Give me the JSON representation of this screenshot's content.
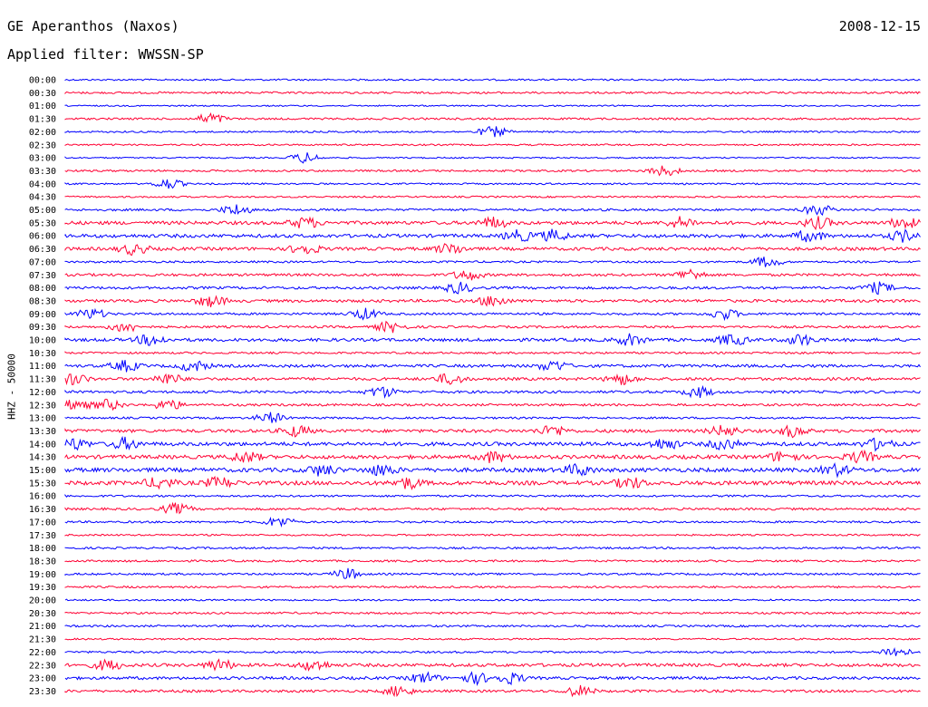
{
  "header": {
    "title": "GE Aperanthos (Naxos)",
    "date": "2008-12-15",
    "filter": "Applied filter: WWSSN-SP"
  },
  "axis": {
    "ylabel": "HHZ - 50000"
  },
  "colors": {
    "blue": "#0000ff",
    "red": "#ff0033"
  },
  "chart_data": {
    "type": "line",
    "series_kind": "seismogram helicorder",
    "row_interval_minutes": 30,
    "row_colors": [
      "blue",
      "red"
    ],
    "rows": [
      {
        "time": "00:00",
        "activity": 0.2
      },
      {
        "time": "00:30",
        "activity": 0.3
      },
      {
        "time": "01:00",
        "activity": 0.1
      },
      {
        "time": "01:30",
        "activity": 0.3,
        "events": [
          0.17
        ]
      },
      {
        "time": "02:00",
        "activity": 0.2,
        "events": [
          0.5
        ]
      },
      {
        "time": "02:30",
        "activity": 0.2
      },
      {
        "time": "03:00",
        "activity": 0.1,
        "events": [
          0.28
        ]
      },
      {
        "time": "03:30",
        "activity": 0.3,
        "events": [
          0.7
        ]
      },
      {
        "time": "04:00",
        "activity": 0.2,
        "events": [
          0.12
        ]
      },
      {
        "time": "04:30",
        "activity": 0.2
      },
      {
        "time": "05:00",
        "activity": 0.4,
        "events": [
          0.2,
          0.88
        ]
      },
      {
        "time": "05:30",
        "activity": 0.8,
        "events": [
          0.28,
          0.5,
          0.72,
          0.88,
          0.98
        ]
      },
      {
        "time": "06:00",
        "activity": 0.8,
        "events": [
          0.53,
          0.57,
          0.87,
          0.98
        ]
      },
      {
        "time": "06:30",
        "activity": 0.7,
        "events": [
          0.08,
          0.28,
          0.45
        ]
      },
      {
        "time": "07:00",
        "activity": 0.3,
        "events": [
          0.82
        ]
      },
      {
        "time": "07:30",
        "activity": 0.5,
        "events": [
          0.47,
          0.73
        ]
      },
      {
        "time": "08:00",
        "activity": 0.5,
        "events": [
          0.46,
          0.95
        ]
      },
      {
        "time": "08:30",
        "activity": 0.6,
        "events": [
          0.17,
          0.5
        ]
      },
      {
        "time": "09:00",
        "activity": 0.4,
        "events": [
          0.03,
          0.35,
          0.77
        ]
      },
      {
        "time": "09:30",
        "activity": 0.4,
        "events": [
          0.07,
          0.38
        ]
      },
      {
        "time": "10:00",
        "activity": 0.7,
        "events": [
          0.1,
          0.66,
          0.78,
          0.86
        ]
      },
      {
        "time": "10:30",
        "activity": 0.3
      },
      {
        "time": "11:00",
        "activity": 0.6,
        "events": [
          0.07,
          0.15,
          0.57
        ]
      },
      {
        "time": "11:30",
        "activity": 0.6,
        "events": [
          0.01,
          0.12,
          0.45,
          0.65
        ]
      },
      {
        "time": "12:00",
        "activity": 0.5,
        "events": [
          0.37,
          0.74
        ]
      },
      {
        "time": "12:30",
        "activity": 0.4,
        "events": [
          0.01,
          0.05,
          0.12
        ]
      },
      {
        "time": "13:00",
        "activity": 0.3,
        "events": [
          0.24
        ]
      },
      {
        "time": "13:30",
        "activity": 0.7,
        "events": [
          0.27,
          0.57,
          0.77,
          0.85
        ]
      },
      {
        "time": "14:00",
        "activity": 0.9,
        "events": [
          0.01,
          0.07,
          0.7,
          0.77,
          0.95
        ]
      },
      {
        "time": "14:30",
        "activity": 0.9,
        "events": [
          0.21,
          0.5,
          0.84,
          0.93
        ]
      },
      {
        "time": "15:00",
        "activity": 1.0,
        "events": [
          0.3,
          0.37,
          0.6,
          0.9
        ]
      },
      {
        "time": "15:30",
        "activity": 1.0,
        "events": [
          0.11,
          0.18,
          0.4,
          0.66
        ]
      },
      {
        "time": "16:00",
        "activity": 0.3
      },
      {
        "time": "16:30",
        "activity": 0.4,
        "events": [
          0.13
        ]
      },
      {
        "time": "17:00",
        "activity": 0.3,
        "events": [
          0.25
        ]
      },
      {
        "time": "17:30",
        "activity": 0.2
      },
      {
        "time": "18:00",
        "activity": 0.3
      },
      {
        "time": "18:30",
        "activity": 0.3
      },
      {
        "time": "19:00",
        "activity": 0.3,
        "events": [
          0.33
        ]
      },
      {
        "time": "19:30",
        "activity": 0.3
      },
      {
        "time": "20:00",
        "activity": 0.2
      },
      {
        "time": "20:30",
        "activity": 0.3
      },
      {
        "time": "21:00",
        "activity": 0.3
      },
      {
        "time": "21:30",
        "activity": 0.2
      },
      {
        "time": "22:00",
        "activity": 0.3,
        "events": [
          0.97
        ]
      },
      {
        "time": "22:30",
        "activity": 0.7,
        "events": [
          0.05,
          0.18,
          0.29
        ]
      },
      {
        "time": "23:00",
        "activity": 0.6,
        "events": [
          0.42,
          0.48,
          0.52
        ]
      },
      {
        "time": "23:30",
        "activity": 0.5,
        "events": [
          0.39,
          0.6
        ]
      }
    ]
  }
}
